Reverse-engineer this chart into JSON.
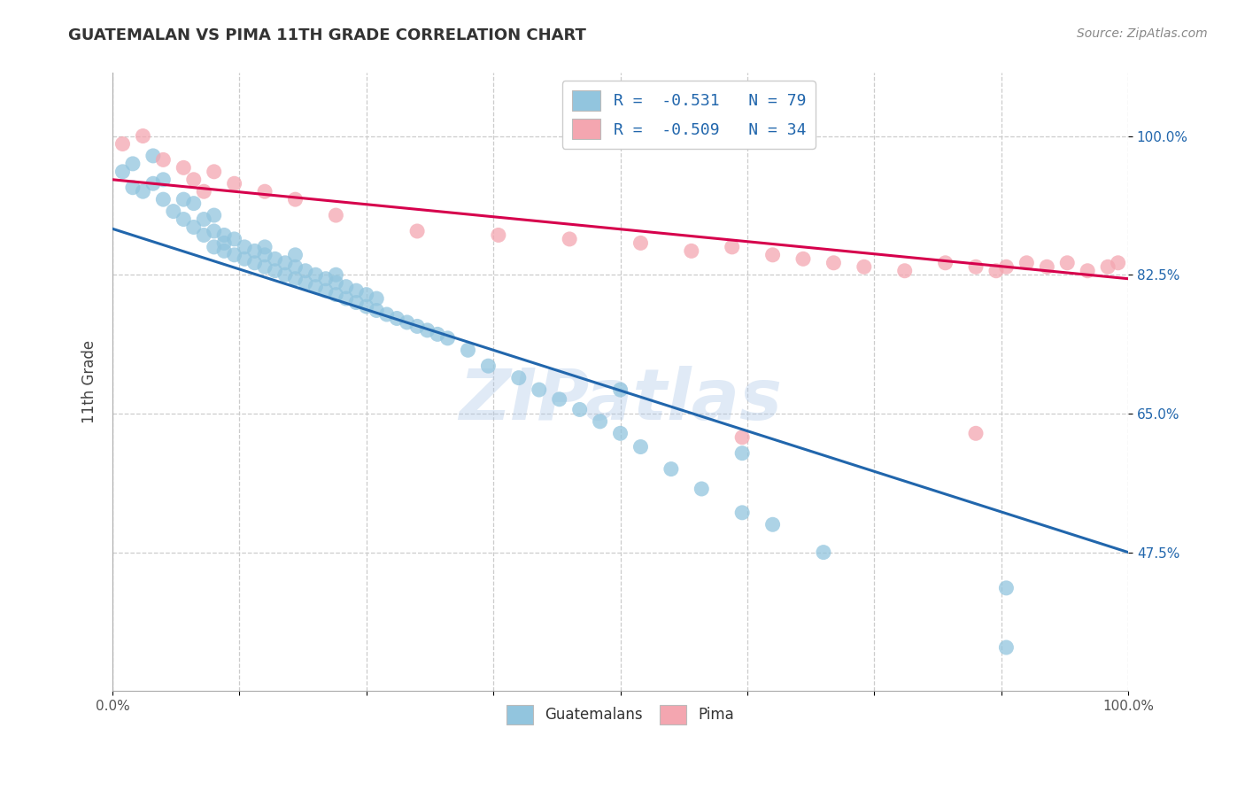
{
  "title": "GUATEMALAN VS PIMA 11TH GRADE CORRELATION CHART",
  "source": "Source: ZipAtlas.com",
  "ylabel": "11th Grade",
  "ytick_labels": [
    "100.0%",
    "82.5%",
    "65.0%",
    "47.5%"
  ],
  "ytick_values": [
    1.0,
    0.825,
    0.65,
    0.475
  ],
  "xlim": [
    0.0,
    1.0
  ],
  "ylim": [
    0.3,
    1.08
  ],
  "legend_blue_label": "R =  -0.531   N = 79",
  "legend_pink_label": "R =  -0.509   N = 34",
  "legend_guatemalans": "Guatemalans",
  "legend_pima": "Pima",
  "blue_color": "#92c5de",
  "pink_color": "#f4a6b0",
  "blue_line_color": "#2166ac",
  "pink_line_color": "#d6004c",
  "watermark": "ZIPatlas",
  "blue_scatter_x": [
    0.01,
    0.02,
    0.02,
    0.03,
    0.04,
    0.04,
    0.05,
    0.05,
    0.06,
    0.07,
    0.07,
    0.08,
    0.08,
    0.09,
    0.09,
    0.1,
    0.1,
    0.1,
    0.11,
    0.11,
    0.11,
    0.12,
    0.12,
    0.13,
    0.13,
    0.14,
    0.14,
    0.15,
    0.15,
    0.15,
    0.16,
    0.16,
    0.17,
    0.17,
    0.18,
    0.18,
    0.18,
    0.19,
    0.19,
    0.2,
    0.2,
    0.21,
    0.21,
    0.22,
    0.22,
    0.22,
    0.23,
    0.23,
    0.24,
    0.24,
    0.25,
    0.25,
    0.26,
    0.26,
    0.27,
    0.28,
    0.29,
    0.3,
    0.31,
    0.32,
    0.33,
    0.35,
    0.37,
    0.4,
    0.42,
    0.44,
    0.46,
    0.48,
    0.5,
    0.52,
    0.55,
    0.58,
    0.62,
    0.5,
    0.62,
    0.65,
    0.7,
    0.88,
    0.88
  ],
  "blue_scatter_y": [
    0.955,
    0.935,
    0.965,
    0.93,
    0.975,
    0.94,
    0.945,
    0.92,
    0.905,
    0.895,
    0.92,
    0.885,
    0.915,
    0.875,
    0.895,
    0.86,
    0.88,
    0.9,
    0.855,
    0.875,
    0.865,
    0.85,
    0.87,
    0.845,
    0.86,
    0.84,
    0.855,
    0.835,
    0.85,
    0.86,
    0.83,
    0.845,
    0.825,
    0.84,
    0.82,
    0.835,
    0.85,
    0.815,
    0.83,
    0.81,
    0.825,
    0.805,
    0.82,
    0.8,
    0.815,
    0.825,
    0.795,
    0.81,
    0.79,
    0.805,
    0.785,
    0.8,
    0.78,
    0.795,
    0.775,
    0.77,
    0.765,
    0.76,
    0.755,
    0.75,
    0.745,
    0.73,
    0.71,
    0.695,
    0.68,
    0.668,
    0.655,
    0.64,
    0.625,
    0.608,
    0.58,
    0.555,
    0.525,
    0.68,
    0.6,
    0.51,
    0.475,
    0.43,
    0.355
  ],
  "pink_scatter_x": [
    0.01,
    0.03,
    0.05,
    0.07,
    0.08,
    0.09,
    0.1,
    0.12,
    0.15,
    0.18,
    0.22,
    0.3,
    0.38,
    0.45,
    0.52,
    0.57,
    0.61,
    0.65,
    0.68,
    0.71,
    0.74,
    0.78,
    0.82,
    0.85,
    0.87,
    0.88,
    0.9,
    0.92,
    0.94,
    0.96,
    0.98,
    0.99,
    0.62,
    0.85
  ],
  "pink_scatter_y": [
    0.99,
    1.0,
    0.97,
    0.96,
    0.945,
    0.93,
    0.955,
    0.94,
    0.93,
    0.92,
    0.9,
    0.88,
    0.875,
    0.87,
    0.865,
    0.855,
    0.86,
    0.85,
    0.845,
    0.84,
    0.835,
    0.83,
    0.84,
    0.835,
    0.83,
    0.835,
    0.84,
    0.835,
    0.84,
    0.83,
    0.835,
    0.84,
    0.62,
    0.625
  ],
  "blue_line_x": [
    0.0,
    1.0
  ],
  "blue_line_y_start": 0.883,
  "blue_line_y_end": 0.475,
  "pink_line_x": [
    0.0,
    1.0
  ],
  "pink_line_y_start": 0.945,
  "pink_line_y_end": 0.82
}
